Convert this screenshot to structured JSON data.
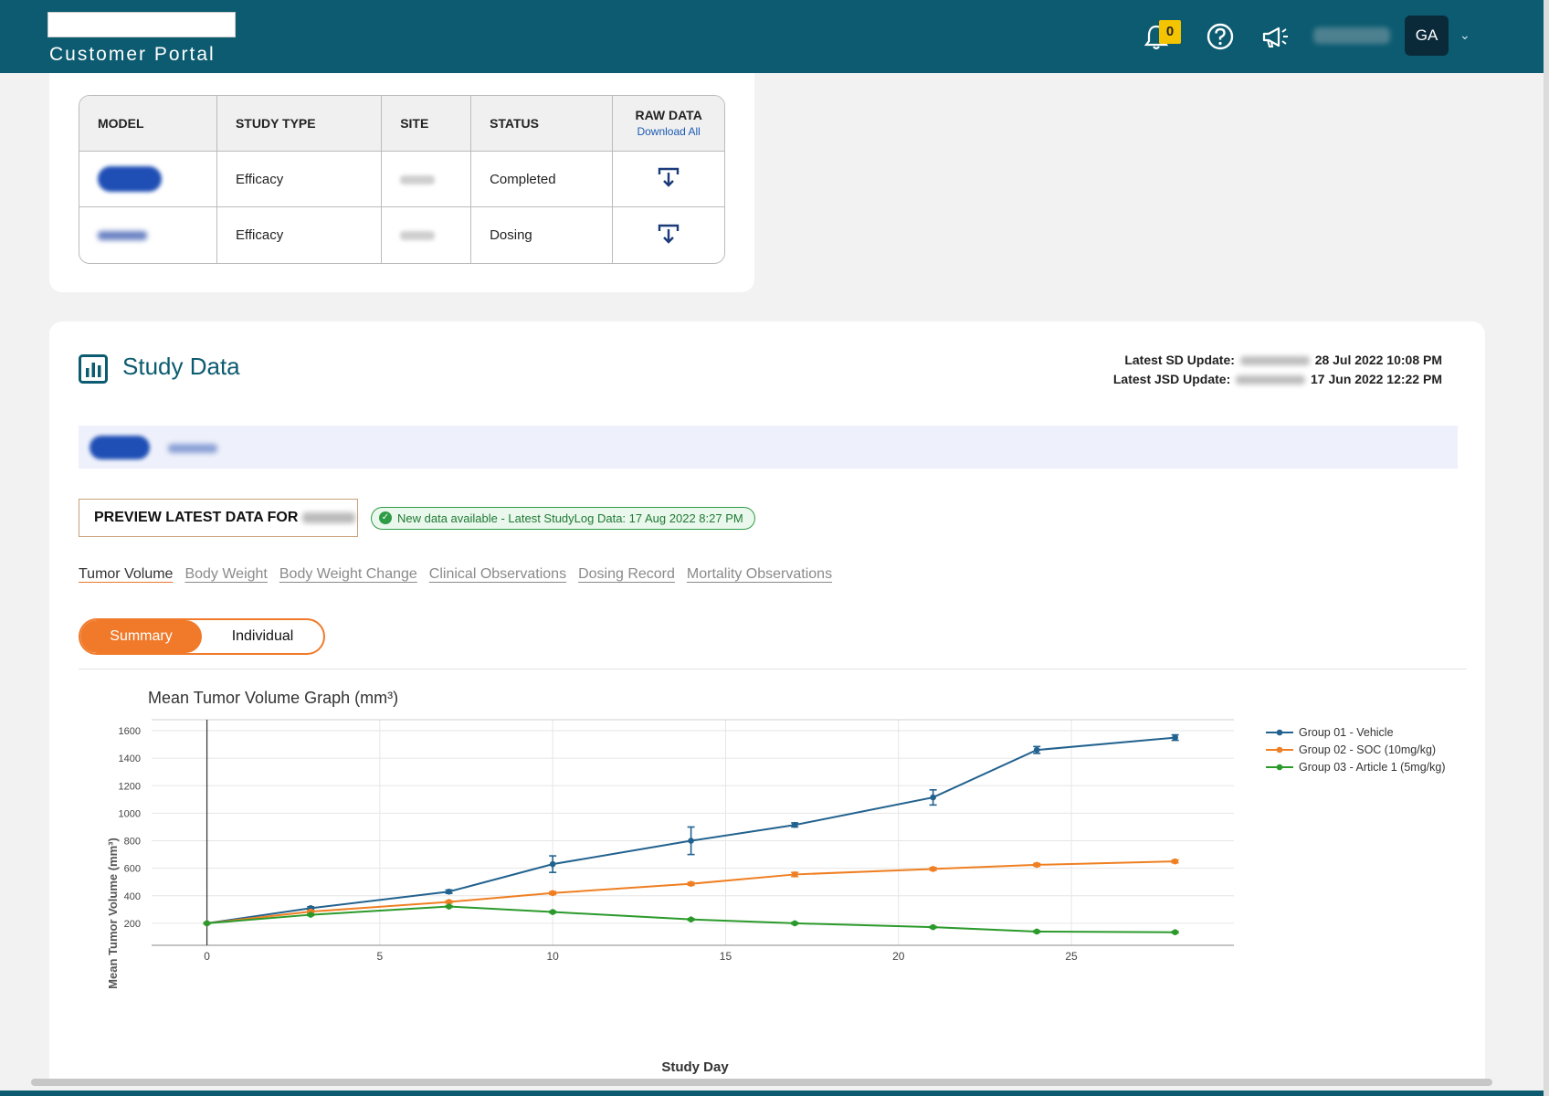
{
  "header": {
    "logo_subtitle": "Customer Portal",
    "notification_count": "0",
    "avatar_initials": "GA",
    "icons": [
      "bell-icon",
      "help-icon",
      "megaphone-icon",
      "chevron-down-icon"
    ],
    "bar_color": "#0c5b70"
  },
  "models_table": {
    "columns": [
      "MODEL",
      "STUDY TYPE",
      "SITE",
      "STATUS",
      "RAW DATA"
    ],
    "download_all_label": "Download All",
    "rows": [
      {
        "study_type": "Efficacy",
        "status": "Completed"
      },
      {
        "study_type": "Efficacy",
        "status": "Dosing"
      }
    ]
  },
  "study_data": {
    "title": "Study Data",
    "sd_update_label": "Latest SD Update:",
    "sd_update_value": "28 Jul 2022 10:08 PM",
    "jsd_update_label": "Latest JSD Update:",
    "jsd_update_value": "17 Jun 2022 12:22 PM",
    "preview_button_label": "PREVIEW LATEST DATA FOR",
    "new_data_badge": "New data available - Latest StudyLog Data: 17 Aug 2022 8:27 PM",
    "tabs": [
      "Tumor Volume",
      "Body Weight",
      "Body Weight Change",
      "Clinical Observations",
      "Dosing Record",
      "Mortality Observations"
    ],
    "toggle": {
      "summary": "Summary",
      "individual": "Individual"
    },
    "accent_color": "#f07a2a"
  },
  "chart_data": {
    "type": "line",
    "title": "Mean Tumor Volume Graph (mm³)",
    "xlabel": "Study Day",
    "ylabel": "Mean Tumor Volume (mm³)",
    "xlim": [
      -1.6,
      29.7
    ],
    "ylim": [
      40,
      1680
    ],
    "x_ticks": [
      0,
      5,
      10,
      15,
      20,
      25
    ],
    "y_ticks": [
      200,
      400,
      600,
      800,
      1000,
      1200,
      1400,
      1600
    ],
    "grid": true,
    "legend_position": "right",
    "series": [
      {
        "name": "Group 01 - Vehicle",
        "color": "#22628f",
        "x": [
          0,
          3,
          7,
          10,
          14,
          17,
          21,
          24,
          28
        ],
        "y": [
          200,
          310,
          430,
          630,
          800,
          915,
          1115,
          1460,
          1550
        ],
        "err": [
          5,
          10,
          12,
          60,
          100,
          15,
          55,
          25,
          20
        ]
      },
      {
        "name": "Group 02 - SOC (10mg/kg)",
        "color": "#ef7f22",
        "x": [
          0,
          3,
          7,
          10,
          14,
          17,
          21,
          24,
          28
        ],
        "y": [
          200,
          285,
          355,
          420,
          487,
          555,
          595,
          625,
          650
        ],
        "err": [
          4,
          8,
          8,
          10,
          10,
          15,
          10,
          10,
          10
        ]
      },
      {
        "name": "Group 03 - Article 1 (5mg/kg)",
        "color": "#2b9a2b",
        "x": [
          0,
          3,
          7,
          10,
          14,
          17,
          21,
          24,
          28
        ],
        "y": [
          200,
          262,
          322,
          282,
          228,
          200,
          172,
          140,
          135
        ],
        "err": [
          4,
          6,
          6,
          6,
          6,
          6,
          6,
          6,
          6
        ]
      }
    ]
  }
}
